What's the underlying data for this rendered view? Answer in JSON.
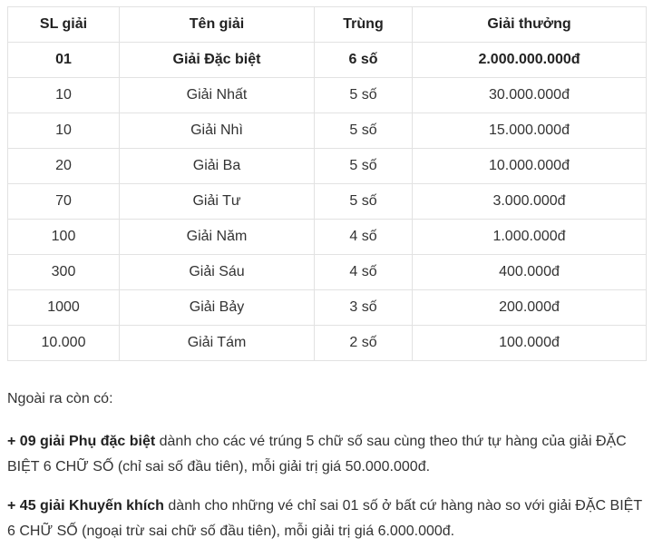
{
  "table": {
    "headers": [
      "SL giải",
      "Tên giải",
      "Trùng",
      "Giải thưởng"
    ],
    "rows": [
      [
        "01",
        "Giải Đặc biệt",
        "6 số",
        "2.000.000.000đ"
      ],
      [
        "10",
        "Giải Nhất",
        "5 số",
        "30.000.000đ"
      ],
      [
        "10",
        "Giải Nhì",
        "5 số",
        "15.000.000đ"
      ],
      [
        "20",
        "Giải Ba",
        "5 số",
        "10.000.000đ"
      ],
      [
        "70",
        "Giải Tư",
        "5 số",
        "3.000.000đ"
      ],
      [
        "100",
        "Giải Năm",
        "4 số",
        "1.000.000đ"
      ],
      [
        "300",
        "Giải Sáu",
        "4 số",
        "400.000đ"
      ],
      [
        "1000",
        "Giải Bảy",
        "3 số",
        "200.000đ"
      ],
      [
        "10.000",
        "Giải Tám",
        "2 số",
        "100.000đ"
      ]
    ]
  },
  "notes": {
    "intro": "Ngoài ra còn có:",
    "item1_bold": "+ 09 giải Phụ đặc biệt",
    "item1_text": " dành cho các vé trúng 5 chữ số sau cùng theo thứ tự hàng của giải ĐẶC BIỆT 6 CHỮ SỐ (chỉ sai số đầu tiên), mỗi giải trị giá 50.000.000đ.",
    "item2_bold": "+ 45 giải Khuyến khích",
    "item2_text": " dành cho những vé chỉ sai 01 số ở bất cứ hàng nào so với giải ĐẶC BIỆT 6 CHỮ SỐ (ngoại trừ sai chữ số đầu tiên), mỗi giải trị giá 6.000.000đ."
  }
}
